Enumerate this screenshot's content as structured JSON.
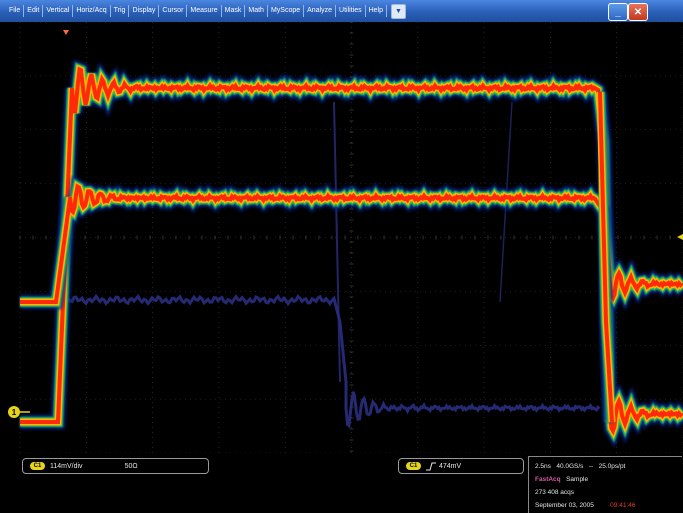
{
  "menu": {
    "items": [
      "File",
      "Edit",
      "Vertical",
      "Horiz/Acq",
      "Trig",
      "Display",
      "Cursor",
      "Measure",
      "Mask",
      "Math",
      "MyScope",
      "Analyze",
      "Utilities",
      "Help"
    ],
    "dropdown_icon": "chevron-down-icon",
    "minimize_icon": "minimize-icon",
    "close_icon": "close-icon"
  },
  "display": {
    "channel_marker": "1",
    "colors": {
      "trace_hot": "#ff2a0a",
      "trace_warm": "#ffb400",
      "trace_cool": "#1ec35a",
      "ghost": "#2a2e80",
      "grid": "#3a3a3a"
    }
  },
  "readouts": {
    "ch1_badge": "C1",
    "ch1_scale": "114mV/div",
    "ch1_term": "50Ω",
    "trig_badge": "C1",
    "trig_slope_icon": "rising-edge-icon",
    "trig_level": "474mV",
    "horiz": "2.5ns",
    "sample_rate": "40.0GS/s",
    "sep1": "--",
    "resolution": "25.0ps/pt",
    "acq_mode": "FastAcq",
    "acq_type": "Sample",
    "acq_count": "273 408 acqs",
    "date": "September 03, 2005",
    "time": "09:41:46"
  }
}
